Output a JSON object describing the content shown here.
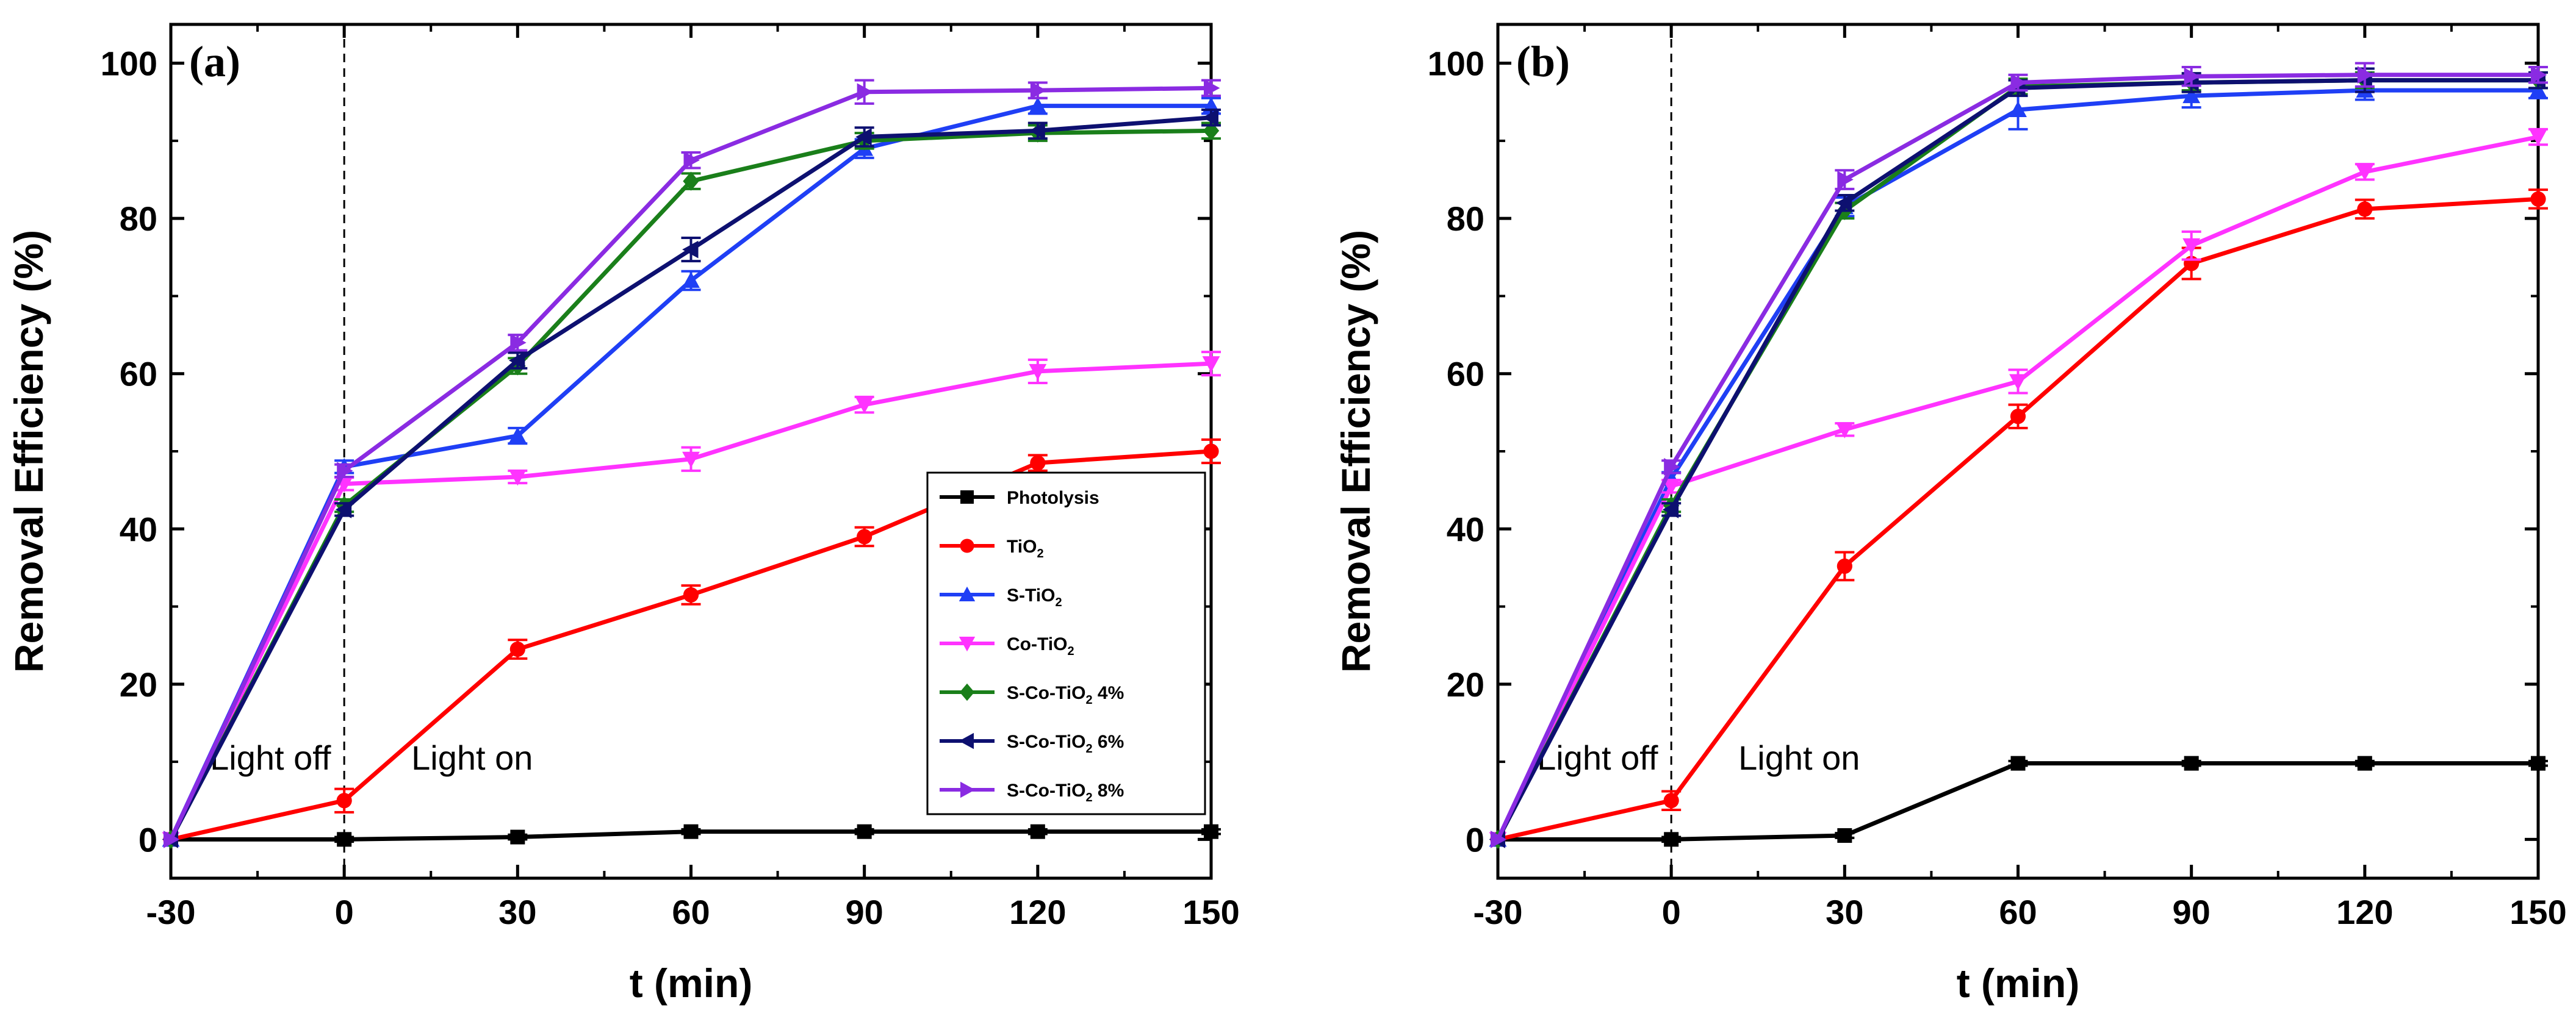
{
  "chart_data": [
    {
      "type": "line",
      "panel_label": "(a)",
      "xlabel": "t (min)",
      "ylabel": "Removal Efficiency (%)",
      "x": [
        -30,
        0,
        30,
        60,
        90,
        120,
        150
      ],
      "x_ticks": [
        "-30",
        "0",
        "30",
        "60",
        "90",
        "120",
        "150"
      ],
      "y_ticks": [
        "0",
        "20",
        "40",
        "60",
        "80",
        "100"
      ],
      "xlim": [
        -30,
        150
      ],
      "ylim": [
        -5,
        105
      ],
      "grid": false,
      "legend_position": "bottom-right",
      "annotations": {
        "light_off": "Light off",
        "light_on": "Light on",
        "divider_x": 0
      },
      "series": [
        {
          "name": "Photolysis",
          "name_main": "Photolysis",
          "name_sub": "",
          "name_suffix": "",
          "color": "#000000",
          "marker": "square",
          "values": [
            0,
            0,
            0.3,
            1,
            1,
            1,
            1
          ],
          "errors": [
            0,
            0.3,
            0.3,
            0.3,
            0.3,
            0.3,
            0.3
          ]
        },
        {
          "name": "TiO2",
          "name_main": "TiO",
          "name_sub": "2",
          "name_suffix": "",
          "color": "#ff0000",
          "marker": "circle",
          "values": [
            0,
            5,
            24.5,
            31.5,
            39,
            48.5,
            50
          ],
          "errors": [
            0,
            1.5,
            1.2,
            1.2,
            1.2,
            1,
            1.5
          ]
        },
        {
          "name": "S-TiO2",
          "name_main": "S-TiO",
          "name_sub": "2",
          "name_suffix": "",
          "color": "#1f3ff5",
          "marker": "triangle-up",
          "values": [
            0,
            48,
            52,
            72,
            89,
            94.5,
            94.5
          ],
          "errors": [
            0,
            0.8,
            1,
            1.2,
            1.2,
            1,
            1
          ]
        },
        {
          "name": "Co-TiO2",
          "name_main": "Co-TiO",
          "name_sub": "2",
          "name_suffix": "",
          "color": "#ff33ff",
          "marker": "triangle-down",
          "values": [
            0,
            45.8,
            46.7,
            49,
            56,
            60.3,
            61.3
          ],
          "errors": [
            0,
            0.8,
            0.8,
            1.5,
            1,
            1.5,
            1.5
          ]
        },
        {
          "name": "S-Co-TiO2 4%",
          "name_main": "S-Co-TiO",
          "name_sub": "2",
          "name_suffix": " 4%",
          "color": "#1a7f1a",
          "marker": "diamond",
          "values": [
            0,
            43,
            61,
            84.8,
            90,
            91,
            91.3
          ],
          "errors": [
            0,
            0.8,
            1,
            1,
            1,
            1,
            1
          ]
        },
        {
          "name": "S-Co-TiO2 6%",
          "name_main": "S-Co-TiO",
          "name_sub": "2",
          "name_suffix": " 6%",
          "color": "#0d1070",
          "marker": "triangle-left",
          "values": [
            0,
            42.5,
            61.7,
            76,
            90.5,
            91.3,
            93
          ],
          "errors": [
            0,
            0.8,
            1,
            1.5,
            1.2,
            1,
            1
          ]
        },
        {
          "name": "S-Co-TiO2 8%",
          "name_main": "S-Co-TiO",
          "name_sub": "2",
          "name_suffix": " 8%",
          "color": "#8a2be2",
          "marker": "triangle-right",
          "values": [
            0,
            47.5,
            64,
            87.5,
            96.3,
            96.5,
            96.8
          ],
          "errors": [
            0,
            0.8,
            1,
            1,
            1.5,
            1,
            1
          ]
        }
      ]
    },
    {
      "type": "line",
      "panel_label": "(b)",
      "xlabel": "t (min)",
      "ylabel": "Removal Efficiency (%)",
      "x": [
        -30,
        0,
        30,
        60,
        90,
        120,
        150
      ],
      "x_ticks": [
        "-30",
        "0",
        "30",
        "60",
        "90",
        "120",
        "150"
      ],
      "y_ticks": [
        "0",
        "20",
        "40",
        "60",
        "80",
        "100"
      ],
      "xlim": [
        -30,
        150
      ],
      "ylim": [
        -5,
        105
      ],
      "grid": false,
      "legend_position": "none",
      "annotations": {
        "light_off": "Light off",
        "light_on": "Light on",
        "divider_x": 0
      },
      "series": [
        {
          "name": "Photolysis",
          "color": "#000000",
          "marker": "square",
          "values": [
            0,
            0,
            0.5,
            9.8,
            9.8,
            9.8,
            9.8
          ],
          "errors": [
            0,
            0.3,
            0.3,
            0.3,
            0.3,
            0.3,
            0.3
          ]
        },
        {
          "name": "TiO2",
          "color": "#ff0000",
          "marker": "circle",
          "values": [
            0,
            5,
            35.2,
            54.5,
            74.2,
            81.2,
            82.5
          ],
          "errors": [
            0,
            1.2,
            1.8,
            1.5,
            2,
            1.2,
            1.2
          ]
        },
        {
          "name": "S-TiO2",
          "color": "#1f3ff5",
          "marker": "triangle-up",
          "values": [
            0,
            46.5,
            81.5,
            94,
            95.8,
            96.5,
            96.5
          ],
          "errors": [
            0,
            0.8,
            1.2,
            2.5,
            1.5,
            1.2,
            1
          ]
        },
        {
          "name": "Co-TiO2",
          "color": "#ff33ff",
          "marker": "triangle-down",
          "values": [
            0,
            45.5,
            52.8,
            59,
            76.5,
            86,
            90.5
          ],
          "errors": [
            0,
            0.8,
            0.8,
            1.5,
            1.8,
            1,
            1
          ]
        },
        {
          "name": "S-Co-TiO2 4%",
          "color": "#1a7f1a",
          "marker": "diamond",
          "values": [
            0,
            43,
            81,
            97,
            97.5,
            97.8,
            97.8
          ],
          "errors": [
            0,
            0.8,
            1,
            1,
            1,
            1,
            1
          ]
        },
        {
          "name": "S-Co-TiO2 6%",
          "color": "#0d1070",
          "marker": "triangle-left",
          "values": [
            0,
            42.5,
            82,
            96.8,
            97.5,
            97.8,
            97.8
          ],
          "errors": [
            0,
            0.8,
            1,
            1,
            1.2,
            1.5,
            1
          ]
        },
        {
          "name": "S-Co-TiO2 8%",
          "color": "#8a2be2",
          "marker": "triangle-right",
          "values": [
            0,
            48,
            85,
            97.5,
            98.3,
            98.5,
            98.5
          ],
          "errors": [
            0,
            0.8,
            1.2,
            1,
            1.2,
            1.5,
            1
          ]
        }
      ]
    }
  ]
}
